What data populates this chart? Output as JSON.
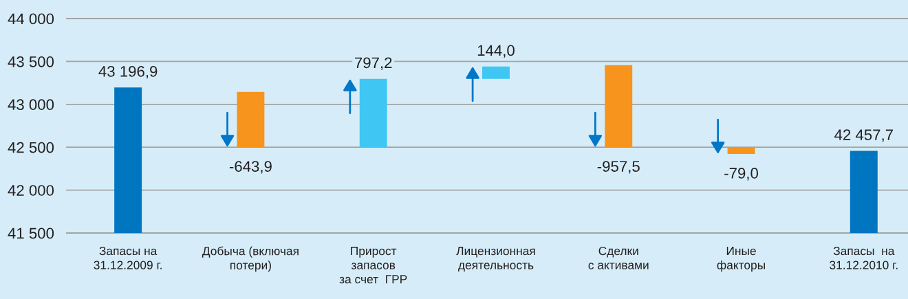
{
  "chart_data": {
    "type": "bar",
    "categories": [
      "Запасы на\n31.12.2009 г.",
      "Добыча (включая\nпотери)",
      "Прирост\nзапасов\nза счет  ГРР",
      "Лицензионная\nдеятельность",
      "Сделки\nс активами",
      "Иные\nфакторы",
      "Запасы  на\n31.12.2010 г."
    ],
    "values": [
      43196.9,
      -643.9,
      797.2,
      144.0,
      -957.5,
      -79.0,
      42457.7
    ],
    "base": [
      null,
      43143.9,
      42500,
      43297.2,
      43457.5,
      42500,
      null
    ],
    "colors": [
      "#0075c0",
      "#f7941d",
      "#40c6f2",
      "#40c6f2",
      "#f7941d",
      "#f7941d",
      "#0075c0"
    ],
    "value_labels": [
      "43 196,9",
      "-643,9",
      "797,2",
      "144,0",
      "-957,5",
      "-79,0",
      "42 457,7"
    ],
    "ylim": [
      41500,
      44000
    ],
    "yticks": [
      {
        "value": 41500,
        "label": "41 500"
      },
      {
        "value": 42000,
        "label": "42 000"
      },
      {
        "value": 42500,
        "label": "42 500"
      },
      {
        "value": 43000,
        "label": "43 000"
      },
      {
        "value": 43500,
        "label": "43 500"
      },
      {
        "value": 44000,
        "label": "44 000"
      }
    ],
    "grid": "y"
  }
}
